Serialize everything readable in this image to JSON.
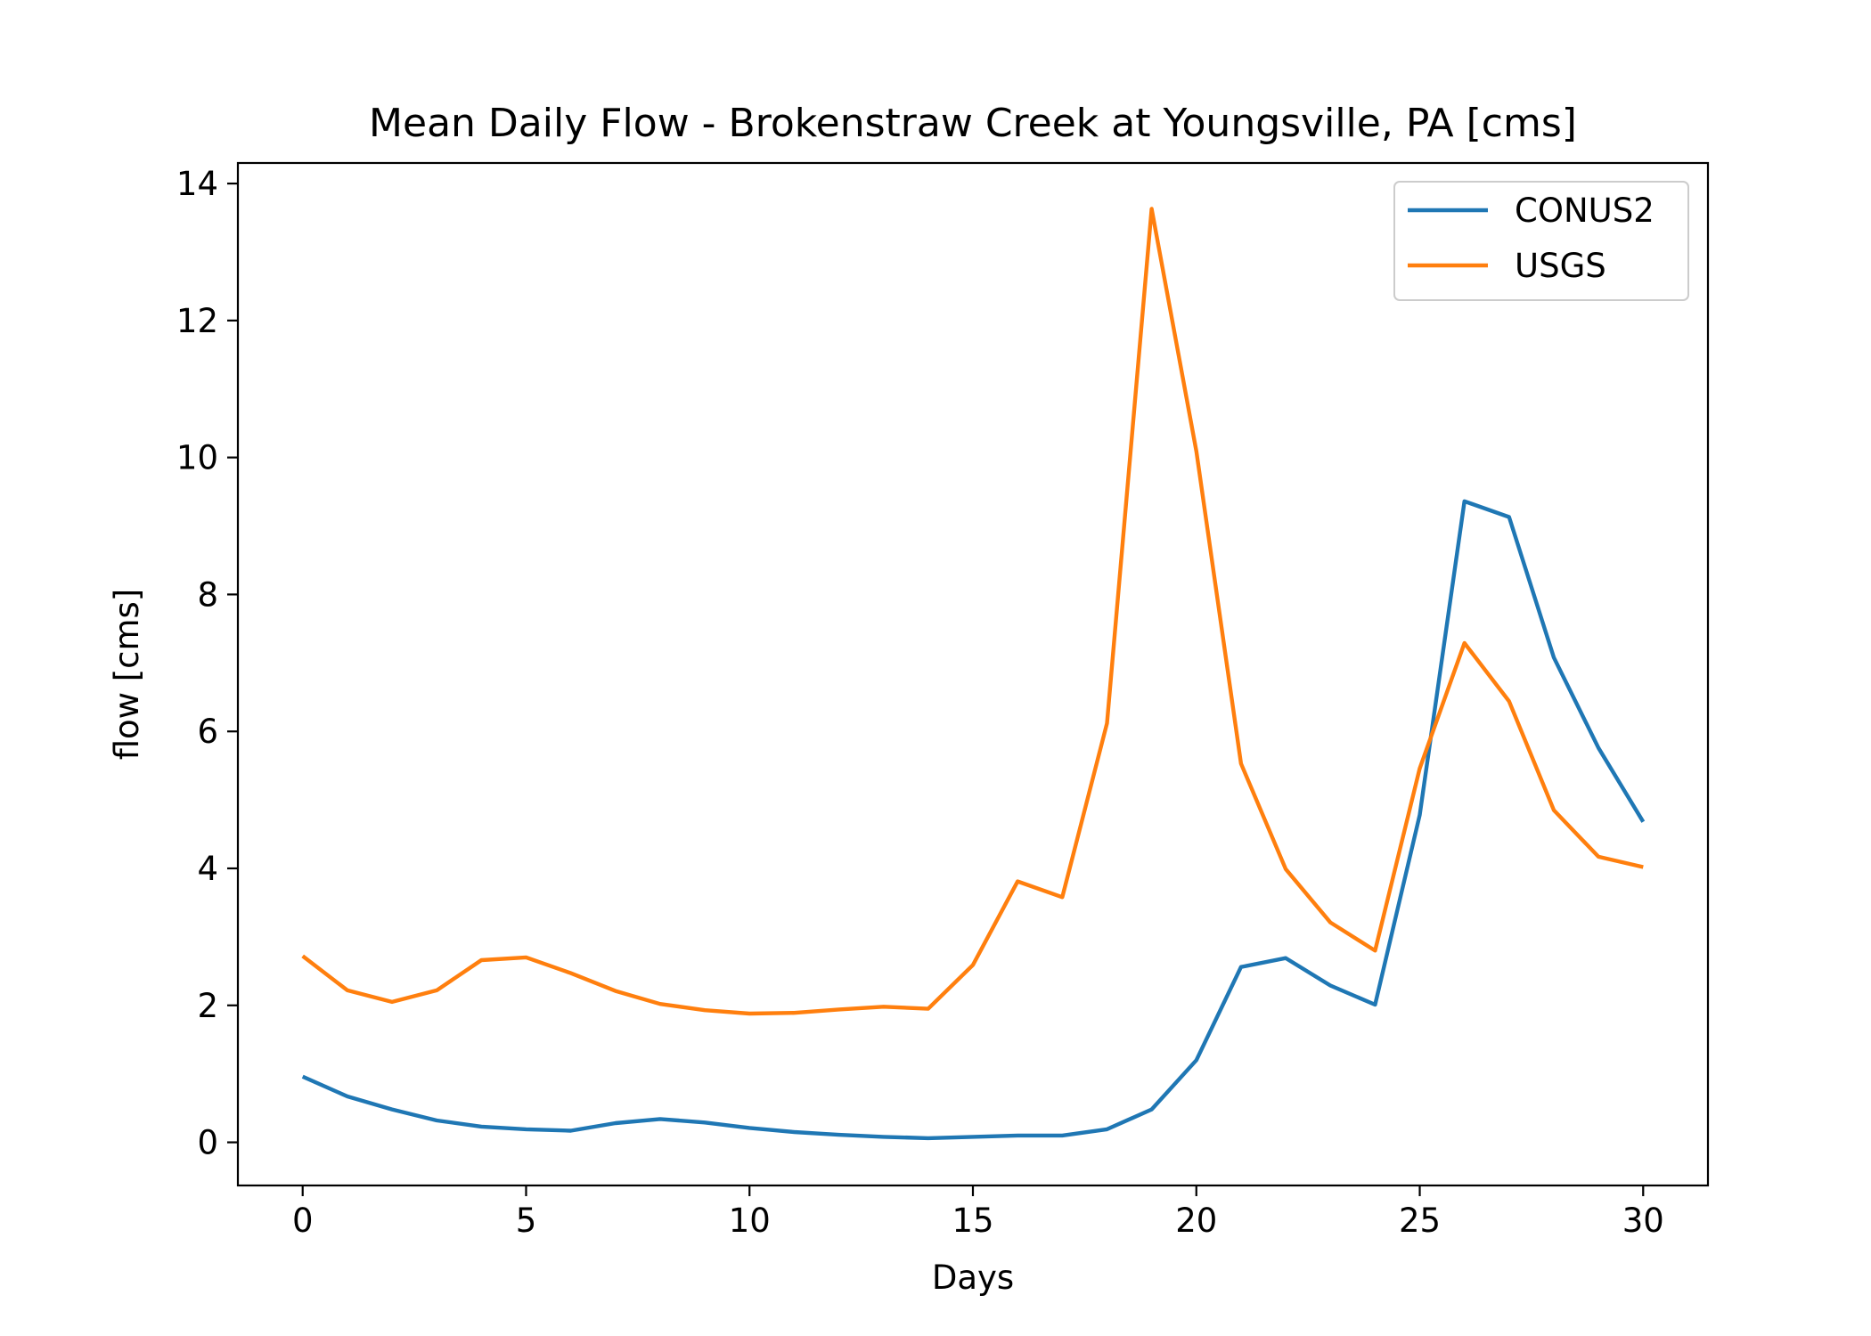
{
  "chart_data": {
    "type": "line",
    "title": "Mean Daily Flow - Brokenstraw Creek at Youngsville, PA [cms]",
    "xlabel": "Days",
    "ylabel": "flow [cms]",
    "xlim": [
      -1.45,
      31.45
    ],
    "ylim": [
      -0.63,
      14.3
    ],
    "xticks": [
      0,
      5,
      10,
      15,
      20,
      25,
      30
    ],
    "yticks": [
      0,
      2,
      4,
      6,
      8,
      10,
      12,
      14
    ],
    "grid": false,
    "legend_position": "top-right",
    "x": [
      0,
      1,
      2,
      3,
      4,
      5,
      6,
      7,
      8,
      9,
      10,
      11,
      12,
      13,
      14,
      15,
      16,
      17,
      18,
      19,
      20,
      21,
      22,
      23,
      24,
      25,
      26,
      27,
      28,
      29,
      30
    ],
    "series": [
      {
        "name": "CONUS2",
        "color": "#1f77b4",
        "values": [
          0.96,
          0.67,
          0.48,
          0.32,
          0.23,
          0.19,
          0.17,
          0.28,
          0.34,
          0.29,
          0.21,
          0.15,
          0.11,
          0.08,
          0.06,
          0.08,
          0.1,
          0.1,
          0.19,
          0.48,
          1.2,
          2.56,
          2.69,
          2.29,
          2.01,
          4.78,
          9.36,
          9.13,
          7.08,
          5.76,
          4.68
        ]
      },
      {
        "name": "USGS",
        "color": "#ff7f0e",
        "values": [
          2.72,
          2.22,
          2.05,
          2.22,
          2.66,
          2.7,
          2.47,
          2.21,
          2.02,
          1.93,
          1.88,
          1.89,
          1.94,
          1.98,
          1.95,
          2.59,
          3.81,
          3.58,
          6.12,
          13.63,
          10.09,
          5.53,
          3.99,
          3.21,
          2.8,
          5.46,
          7.29,
          6.44,
          4.85,
          4.17,
          4.02
        ]
      }
    ]
  }
}
